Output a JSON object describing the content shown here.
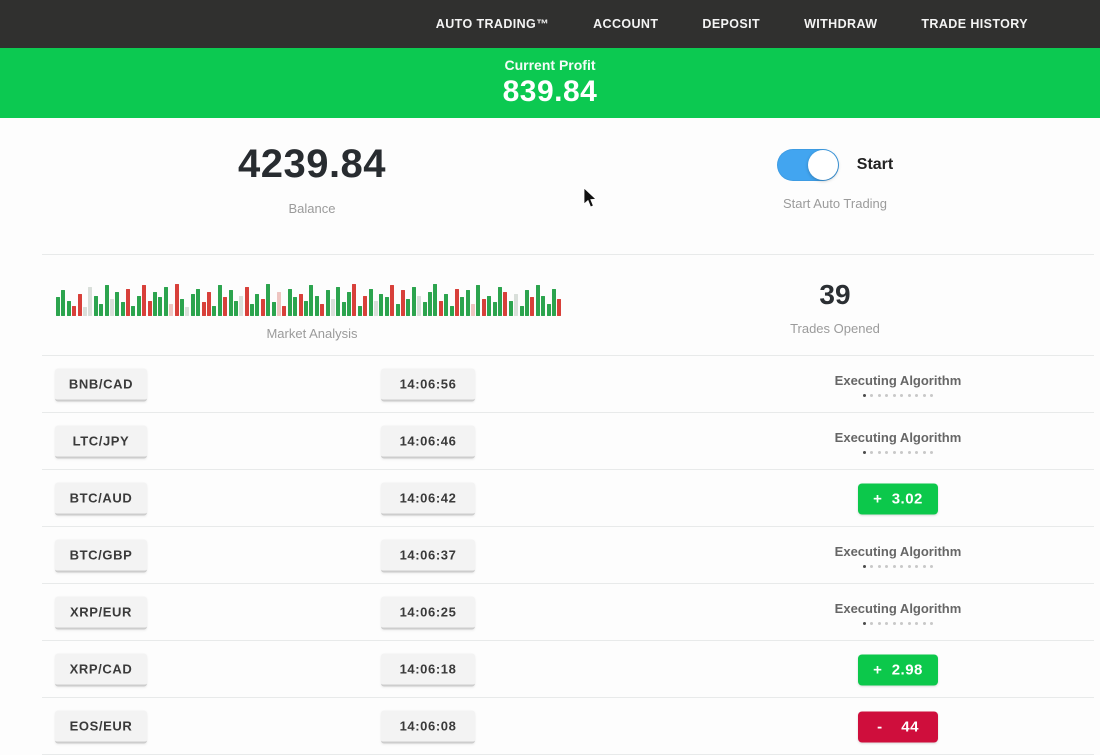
{
  "nav": {
    "items": [
      "AUTO TRADING™",
      "ACCOUNT",
      "DEPOSIT",
      "WITHDRAW",
      "TRADE HISTORY"
    ]
  },
  "banner": {
    "label": "Current Profit",
    "value": "839.84"
  },
  "account": {
    "balance": "4239.84",
    "balance_label": "Balance",
    "toggle_label": "Start",
    "toggle_caption": "Start Auto Trading",
    "toggle_state": "on"
  },
  "stats": {
    "trades_opened": "39",
    "trades_opened_label": "Trades Opened"
  },
  "status_text": {
    "executing_label": "Executing Algorithm",
    "progress_dots": 10
  },
  "chart_data": {
    "type": "bar",
    "title": "Market Analysis",
    "ylim": [
      0,
      1
    ],
    "legend": "none",
    "color_map": {
      "g": "#2ca44e",
      "r": "#d8403a",
      "l": "#d9dfda",
      "p": "#eec5c1"
    },
    "bars": [
      [
        0.55,
        "g"
      ],
      [
        0.75,
        "g"
      ],
      [
        0.45,
        "g"
      ],
      [
        0.3,
        "r"
      ],
      [
        0.65,
        "r"
      ],
      [
        0.25,
        "l"
      ],
      [
        0.85,
        "l"
      ],
      [
        0.6,
        "g"
      ],
      [
        0.35,
        "g"
      ],
      [
        0.9,
        "g"
      ],
      [
        0.5,
        "l"
      ],
      [
        0.7,
        "g"
      ],
      [
        0.4,
        "g"
      ],
      [
        0.8,
        "r"
      ],
      [
        0.3,
        "g"
      ],
      [
        0.6,
        "g"
      ],
      [
        0.9,
        "r"
      ],
      [
        0.45,
        "r"
      ],
      [
        0.7,
        "g"
      ],
      [
        0.55,
        "g"
      ],
      [
        0.85,
        "g"
      ],
      [
        0.35,
        "p"
      ],
      [
        0.95,
        "r"
      ],
      [
        0.5,
        "g"
      ],
      [
        0.25,
        "l"
      ],
      [
        0.65,
        "g"
      ],
      [
        0.8,
        "g"
      ],
      [
        0.4,
        "r"
      ],
      [
        0.7,
        "r"
      ],
      [
        0.3,
        "g"
      ],
      [
        0.9,
        "g"
      ],
      [
        0.55,
        "r"
      ],
      [
        0.75,
        "g"
      ],
      [
        0.45,
        "g"
      ],
      [
        0.6,
        "l"
      ],
      [
        0.85,
        "r"
      ],
      [
        0.35,
        "g"
      ],
      [
        0.65,
        "g"
      ],
      [
        0.5,
        "r"
      ],
      [
        0.95,
        "g"
      ],
      [
        0.4,
        "g"
      ],
      [
        0.7,
        "p"
      ],
      [
        0.3,
        "r"
      ],
      [
        0.8,
        "g"
      ],
      [
        0.55,
        "g"
      ],
      [
        0.65,
        "r"
      ],
      [
        0.45,
        "g"
      ],
      [
        0.9,
        "g"
      ],
      [
        0.6,
        "g"
      ],
      [
        0.35,
        "r"
      ],
      [
        0.75,
        "g"
      ],
      [
        0.5,
        "l"
      ],
      [
        0.85,
        "g"
      ],
      [
        0.4,
        "g"
      ],
      [
        0.7,
        "g"
      ],
      [
        0.95,
        "r"
      ],
      [
        0.3,
        "g"
      ],
      [
        0.6,
        "r"
      ],
      [
        0.8,
        "g"
      ],
      [
        0.45,
        "l"
      ],
      [
        0.65,
        "g"
      ],
      [
        0.55,
        "g"
      ],
      [
        0.9,
        "r"
      ],
      [
        0.35,
        "g"
      ],
      [
        0.75,
        "r"
      ],
      [
        0.5,
        "g"
      ],
      [
        0.85,
        "g"
      ],
      [
        0.6,
        "l"
      ],
      [
        0.4,
        "g"
      ],
      [
        0.7,
        "g"
      ],
      [
        0.95,
        "g"
      ],
      [
        0.45,
        "r"
      ],
      [
        0.65,
        "g"
      ],
      [
        0.3,
        "g"
      ],
      [
        0.8,
        "r"
      ],
      [
        0.55,
        "g"
      ],
      [
        0.75,
        "g"
      ],
      [
        0.35,
        "p"
      ],
      [
        0.9,
        "g"
      ],
      [
        0.5,
        "r"
      ],
      [
        0.6,
        "g"
      ],
      [
        0.4,
        "g"
      ],
      [
        0.85,
        "g"
      ],
      [
        0.7,
        "r"
      ],
      [
        0.45,
        "g"
      ],
      [
        0.65,
        "l"
      ],
      [
        0.3,
        "g"
      ],
      [
        0.75,
        "g"
      ],
      [
        0.55,
        "r"
      ],
      [
        0.9,
        "g"
      ],
      [
        0.6,
        "g"
      ],
      [
        0.35,
        "g"
      ],
      [
        0.8,
        "g"
      ],
      [
        0.5,
        "r"
      ]
    ]
  },
  "trades": [
    {
      "pair": "BNB/CAD",
      "time": "14:06:56",
      "status": "executing",
      "result": ""
    },
    {
      "pair": "LTC/JPY",
      "time": "14:06:46",
      "status": "executing",
      "result": ""
    },
    {
      "pair": "BTC/AUD",
      "time": "14:06:42",
      "status": "profit",
      "result": "+  3.02"
    },
    {
      "pair": "BTC/GBP",
      "time": "14:06:37",
      "status": "executing",
      "result": ""
    },
    {
      "pair": "XRP/EUR",
      "time": "14:06:25",
      "status": "executing",
      "result": ""
    },
    {
      "pair": "XRP/CAD",
      "time": "14:06:18",
      "status": "profit",
      "result": "+  2.98"
    },
    {
      "pair": "EOS/EUR",
      "time": "14:06:08",
      "status": "loss",
      "result": "-    44"
    }
  ],
  "colors": {
    "nav_bg": "#30302f",
    "banner_green": "#0cc951",
    "badge_green": "#0cc84b",
    "badge_red": "#cf0e3c",
    "toggle_blue": "#42a5f0",
    "chart_green": "#2ca44e",
    "chart_red": "#d8403a"
  }
}
